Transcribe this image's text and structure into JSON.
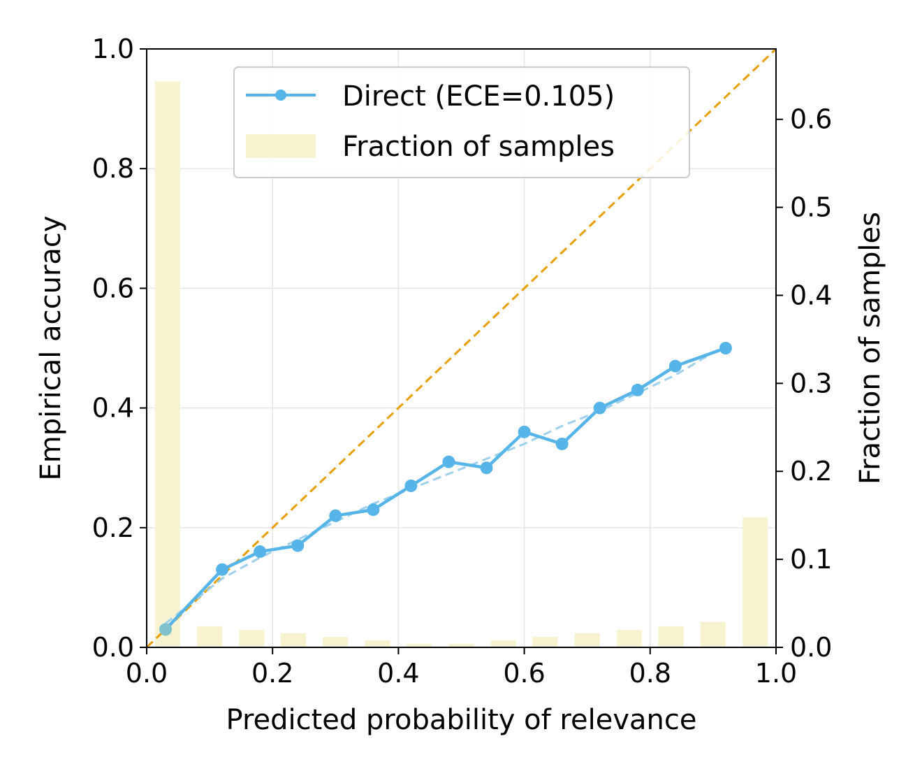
{
  "chart_data": {
    "type": "line",
    "xlabel": "Predicted probability of relevance",
    "ylabel": "Empirical accuracy",
    "ylabel_right": "Fraction of samples",
    "xlim": [
      0.0,
      1.0
    ],
    "ylim": [
      0.0,
      1.0
    ],
    "ylim_right": [
      0.0,
      0.68
    ],
    "x_ticks": [
      "0.0",
      "0.2",
      "0.4",
      "0.6",
      "0.8",
      "1.0"
    ],
    "y_ticks": [
      "0.0",
      "0.2",
      "0.4",
      "0.6",
      "0.8",
      "1.0"
    ],
    "y_right_ticks": [
      "0.0",
      "0.1",
      "0.2",
      "0.3",
      "0.4",
      "0.5",
      "0.6"
    ],
    "grid": true,
    "legend_position": "top-center",
    "series": [
      {
        "name": "Direct (ECE=0.105)",
        "color": "#56B4E9",
        "x": [
          0.03,
          0.12,
          0.18,
          0.24,
          0.3,
          0.36,
          0.42,
          0.48,
          0.54,
          0.6,
          0.66,
          0.72,
          0.78,
          0.84,
          0.92
        ],
        "y": [
          0.03,
          0.13,
          0.16,
          0.17,
          0.22,
          0.23,
          0.27,
          0.31,
          0.3,
          0.36,
          0.34,
          0.4,
          0.43,
          0.47,
          0.5
        ]
      }
    ],
    "trend_line": {
      "color": "#9ED0EE",
      "x": [
        0.03,
        0.12,
        0.18,
        0.24,
        0.3,
        0.36,
        0.42,
        0.48,
        0.54,
        0.6,
        0.66,
        0.72,
        0.78,
        0.84,
        0.92
      ],
      "y": [
        0.04,
        0.115,
        0.15,
        0.18,
        0.21,
        0.24,
        0.265,
        0.29,
        0.315,
        0.34,
        0.37,
        0.395,
        0.425,
        0.455,
        0.505
      ]
    },
    "diagonal": {
      "color": "#E69F00",
      "x": [
        0,
        1
      ],
      "y": [
        0,
        1
      ]
    },
    "histogram": {
      "name": "Fraction of samples",
      "color": "#F7F3D0",
      "bin_centers": [
        0.033,
        0.1,
        0.167,
        0.233,
        0.3,
        0.367,
        0.433,
        0.5,
        0.567,
        0.633,
        0.7,
        0.767,
        0.833,
        0.9,
        0.967
      ],
      "values": [
        0.643,
        0.024,
        0.02,
        0.016,
        0.012,
        0.008,
        0.004,
        0.004,
        0.008,
        0.012,
        0.016,
        0.02,
        0.024,
        0.029,
        0.148
      ]
    }
  }
}
